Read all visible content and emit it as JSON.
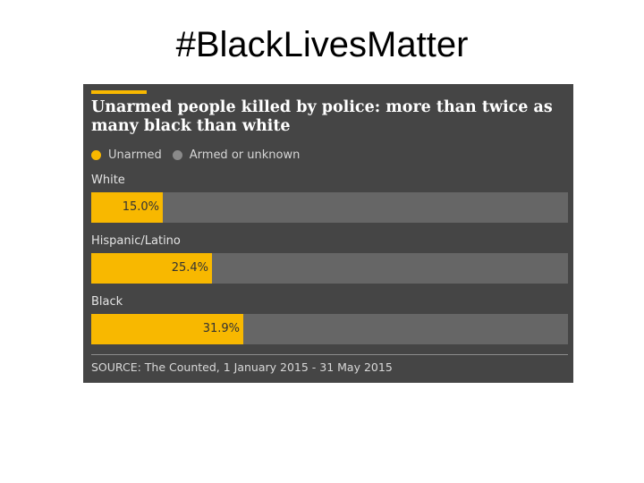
{
  "slide": {
    "title": "#BlackLivesMatter"
  },
  "colors": {
    "panel_background": "#454545",
    "unarmed": "#f8b800",
    "armed_or_unknown": "#666666",
    "legend_armed_dot": "#8a8a8a"
  },
  "chart_data": {
    "type": "bar",
    "orientation": "horizontal",
    "stacked_to_100": true,
    "title": "Unarmed people killed by police: more than twice as many black than white",
    "legend": [
      "Unarmed",
      "Armed or unknown"
    ],
    "categories": [
      "White",
      "Hispanic/Latino",
      "Black"
    ],
    "series": [
      {
        "name": "Unarmed",
        "values": [
          15.0,
          25.4,
          31.9
        ]
      },
      {
        "name": "Armed or unknown",
        "values": [
          85.0,
          74.6,
          68.1
        ]
      }
    ],
    "value_labels": [
      "15.0%",
      "25.4%",
      "31.9%"
    ],
    "unit": "%",
    "xlim": [
      0,
      100
    ],
    "grid": false,
    "legend_position": "top-left",
    "source": "SOURCE: The Counted, 1 January 2015 - 31 May 2015"
  }
}
